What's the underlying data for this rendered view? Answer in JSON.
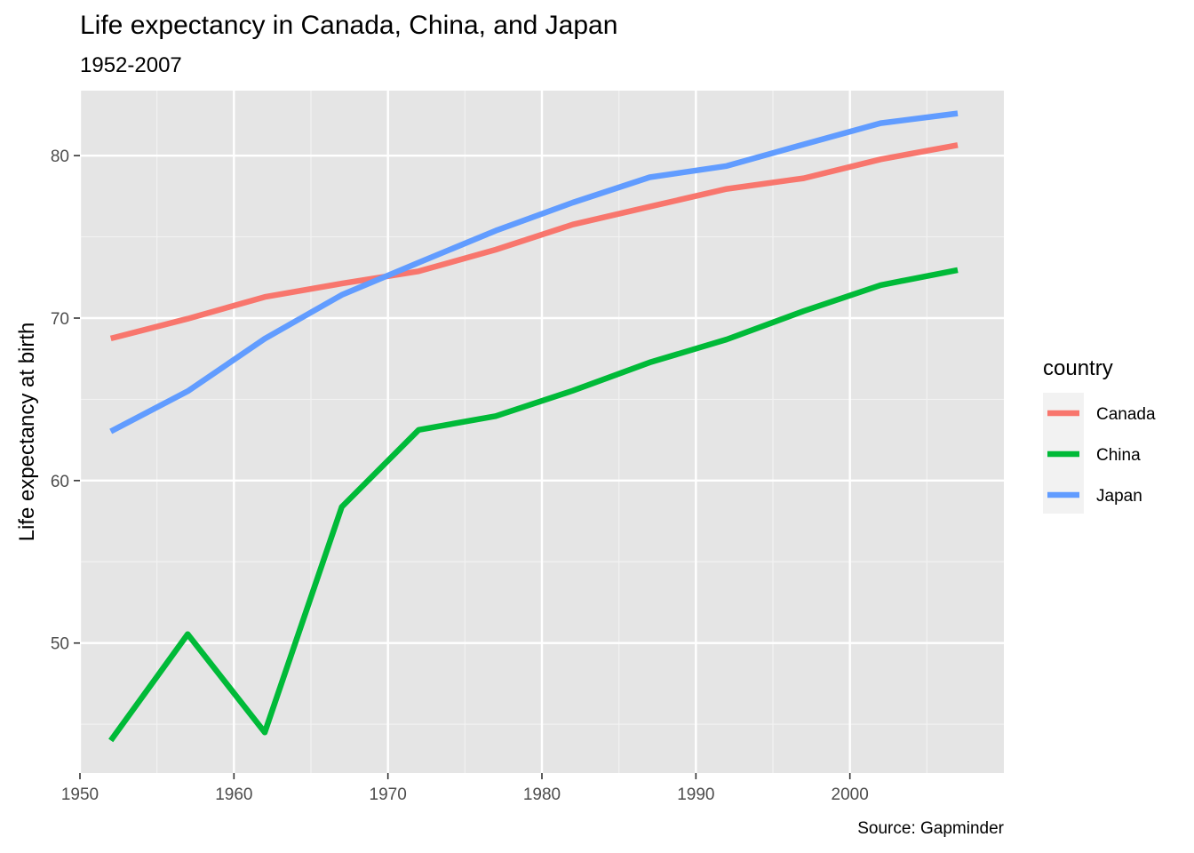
{
  "chart_data": {
    "type": "line",
    "title": "Life expectancy in Canada, China, and Japan",
    "subtitle": "1952-2007",
    "caption": "Source: Gapminder",
    "xlabel": "",
    "ylabel": "Life expectancy at birth",
    "xlim": [
      1950,
      2010
    ],
    "ylim": [
      42,
      84
    ],
    "x_ticks": [
      1950,
      1960,
      1970,
      1980,
      1990,
      2000
    ],
    "y_ticks": [
      50,
      60,
      70,
      80
    ],
    "grid": true,
    "background": "#e5e5e5",
    "legend": {
      "title": "country",
      "position": "right"
    },
    "x": [
      1952,
      1957,
      1962,
      1967,
      1972,
      1977,
      1982,
      1987,
      1992,
      1997,
      2002,
      2007
    ],
    "series": [
      {
        "name": "Canada",
        "color": "#F8766D",
        "values": [
          68.75,
          69.96,
          71.3,
          72.13,
          72.88,
          74.21,
          75.76,
          76.86,
          77.95,
          78.61,
          79.77,
          80.65
        ]
      },
      {
        "name": "China",
        "color": "#00BA38",
        "values": [
          44.0,
          50.55,
          44.5,
          58.38,
          63.12,
          63.97,
          65.53,
          67.27,
          68.69,
          70.43,
          72.03,
          72.96
        ]
      },
      {
        "name": "Japan",
        "color": "#619CFF",
        "values": [
          63.03,
          65.5,
          68.73,
          71.43,
          73.42,
          75.38,
          77.11,
          78.67,
          79.36,
          80.69,
          82.0,
          82.6
        ]
      }
    ]
  }
}
